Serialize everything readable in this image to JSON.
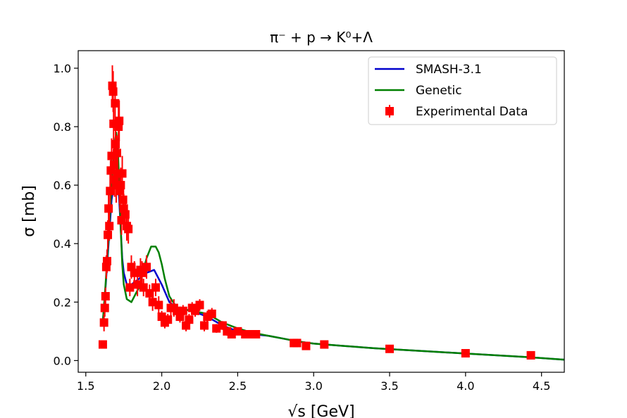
{
  "chart_data": {
    "type": "line",
    "title": "π⁻ + p → K⁰+Λ",
    "xlabel": "√s [GeV]",
    "ylabel": "σ [mb]",
    "xlim": [
      1.45,
      4.65
    ],
    "ylim": [
      -0.04,
      1.06
    ],
    "xticks": [
      1.5,
      2.0,
      2.5,
      3.0,
      3.5,
      4.0,
      4.5
    ],
    "xtick_labels": [
      "1.5",
      "2.0",
      "2.5",
      "3.0",
      "3.5",
      "4.0",
      "4.5"
    ],
    "yticks": [
      0.0,
      0.2,
      0.4,
      0.6,
      0.8,
      1.0
    ],
    "ytick_labels": [
      "0.0",
      "0.2",
      "0.4",
      "0.6",
      "0.8",
      "1.0"
    ],
    "legend_position": "top-right",
    "series": [
      {
        "name": "SMASH-3.1",
        "kind": "line",
        "color": "#0000cc",
        "x": [
          1.612,
          1.63,
          1.65,
          1.67,
          1.69,
          1.7,
          1.71,
          1.72,
          1.73,
          1.74,
          1.75,
          1.77,
          1.8,
          1.85,
          1.9,
          1.95,
          2.0,
          2.05,
          2.1,
          2.2,
          2.3,
          2.4,
          2.5,
          2.6,
          2.7,
          2.8,
          2.9,
          3.0,
          3.2,
          3.4,
          3.6,
          3.8,
          4.0,
          4.2,
          4.4,
          4.65
        ],
        "y": [
          0.13,
          0.25,
          0.4,
          0.55,
          0.62,
          0.64,
          0.63,
          0.55,
          0.45,
          0.35,
          0.3,
          0.26,
          0.26,
          0.28,
          0.3,
          0.31,
          0.26,
          0.2,
          0.18,
          0.17,
          0.15,
          0.12,
          0.1,
          0.09,
          0.085,
          0.075,
          0.065,
          0.058,
          0.05,
          0.042,
          0.036,
          0.03,
          0.024,
          0.018,
          0.012,
          0.003
        ]
      },
      {
        "name": "Genetic",
        "kind": "line",
        "color": "#008000",
        "x": [
          1.612,
          1.63,
          1.65,
          1.67,
          1.69,
          1.7,
          1.71,
          1.72,
          1.73,
          1.74,
          1.75,
          1.77,
          1.8,
          1.85,
          1.9,
          1.93,
          1.96,
          1.98,
          2.0,
          2.02,
          2.05,
          2.1,
          2.2,
          2.3,
          2.4,
          2.5,
          2.6,
          2.7,
          2.8,
          2.9,
          3.0,
          3.2,
          3.4,
          3.6,
          3.8,
          4.0,
          4.2,
          4.4,
          4.65
        ],
        "y": [
          0.13,
          0.26,
          0.42,
          0.6,
          0.74,
          0.78,
          0.74,
          0.6,
          0.45,
          0.33,
          0.26,
          0.21,
          0.2,
          0.25,
          0.35,
          0.39,
          0.39,
          0.37,
          0.33,
          0.28,
          0.22,
          0.18,
          0.17,
          0.16,
          0.13,
          0.11,
          0.095,
          0.085,
          0.075,
          0.065,
          0.058,
          0.05,
          0.042,
          0.036,
          0.03,
          0.024,
          0.018,
          0.012,
          0.003
        ]
      },
      {
        "name": "Experimental Data",
        "kind": "scatter",
        "color": "#ff0000",
        "x": [
          1.612,
          1.62,
          1.625,
          1.63,
          1.635,
          1.64,
          1.645,
          1.65,
          1.655,
          1.66,
          1.665,
          1.67,
          1.675,
          1.68,
          1.683,
          1.686,
          1.69,
          1.693,
          1.696,
          1.7,
          1.705,
          1.71,
          1.715,
          1.72,
          1.725,
          1.73,
          1.735,
          1.74,
          1.745,
          1.75,
          1.76,
          1.77,
          1.78,
          1.79,
          1.8,
          1.82,
          1.84,
          1.86,
          1.87,
          1.88,
          1.9,
          1.92,
          1.94,
          1.96,
          1.98,
          2.0,
          2.02,
          2.04,
          2.06,
          2.08,
          2.1,
          2.12,
          2.14,
          2.16,
          2.18,
          2.2,
          2.22,
          2.25,
          2.28,
          2.3,
          2.33,
          2.36,
          2.4,
          2.43,
          2.46,
          2.5,
          2.55,
          2.6,
          2.62,
          2.87,
          2.89,
          2.95,
          3.07,
          3.5,
          4.0,
          4.43
        ],
        "y": [
          0.055,
          0.13,
          0.18,
          0.22,
          0.32,
          0.34,
          0.43,
          0.52,
          0.46,
          0.58,
          0.65,
          0.7,
          0.94,
          0.92,
          0.81,
          0.67,
          0.62,
          0.88,
          0.74,
          0.6,
          0.71,
          0.64,
          0.8,
          0.82,
          0.58,
          0.6,
          0.48,
          0.64,
          0.55,
          0.52,
          0.5,
          0.46,
          0.45,
          0.25,
          0.32,
          0.3,
          0.26,
          0.31,
          0.3,
          0.25,
          0.32,
          0.23,
          0.2,
          0.25,
          0.19,
          0.15,
          0.13,
          0.14,
          0.18,
          0.18,
          0.17,
          0.15,
          0.17,
          0.12,
          0.14,
          0.18,
          0.17,
          0.19,
          0.12,
          0.15,
          0.16,
          0.11,
          0.12,
          0.1,
          0.09,
          0.1,
          0.09,
          0.09,
          0.09,
          0.06,
          0.06,
          0.05,
          0.055,
          0.04,
          0.025,
          0.018
        ],
        "yerr": [
          0.01,
          0.03,
          0.03,
          0.03,
          0.04,
          0.04,
          0.05,
          0.05,
          0.05,
          0.06,
          0.06,
          0.06,
          0.07,
          0.07,
          0.07,
          0.06,
          0.06,
          0.07,
          0.06,
          0.06,
          0.06,
          0.06,
          0.07,
          0.07,
          0.06,
          0.06,
          0.05,
          0.06,
          0.05,
          0.05,
          0.05,
          0.05,
          0.05,
          0.03,
          0.04,
          0.04,
          0.04,
          0.04,
          0.04,
          0.03,
          0.04,
          0.03,
          0.03,
          0.03,
          0.03,
          0.02,
          0.02,
          0.02,
          0.03,
          0.03,
          0.02,
          0.02,
          0.02,
          0.02,
          0.02,
          0.02,
          0.02,
          0.02,
          0.02,
          0.02,
          0.02,
          0.015,
          0.015,
          0.015,
          0.01,
          0.01,
          0.01,
          0.01,
          0.01,
          0.01,
          0.01,
          0.008,
          0.008,
          0.006,
          0.005,
          0.004
        ]
      }
    ]
  }
}
